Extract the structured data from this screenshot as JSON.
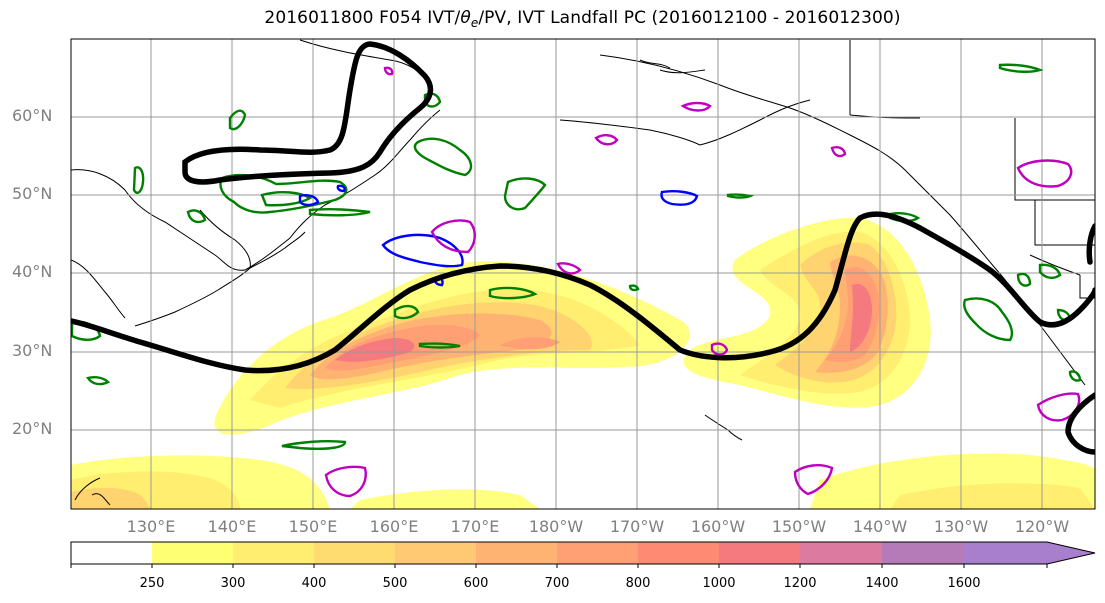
{
  "title": {
    "prefix": "2016011800 F054 IVT/",
    "theta": "θ",
    "sub": "e",
    "suffix": "/PV, IVT Landfall PC (2016012100 - 2016012300)"
  },
  "map": {
    "lat_labels": [
      "60°N",
      "50°N",
      "40°N",
      "30°N",
      "20°N"
    ],
    "lon_labels": [
      "130°E",
      "140°E",
      "150°E",
      "160°E",
      "170°E",
      "180°W",
      "170°W",
      "160°W",
      "150°W",
      "140°W",
      "130°W",
      "120°W"
    ],
    "colors": {
      "contour_black": "#000000",
      "contour_green": "#008000",
      "contour_blue": "#0000ff",
      "contour_magenta": "#bf00bf",
      "grid": "#999999"
    }
  },
  "colorbar": {
    "levels": [
      "250",
      "300",
      "400",
      "500",
      "600",
      "700",
      "800",
      "1000",
      "1200",
      "1400",
      "1600"
    ],
    "colors": [
      "#ffffff",
      "#ffff73",
      "#ffee70",
      "#ffdc70",
      "#ffc873",
      "#ffb373",
      "#ff9f73",
      "#ff8a73",
      "#f57a80",
      "#dc7aa0",
      "#b57ab8",
      "#a87fcc"
    ]
  }
}
